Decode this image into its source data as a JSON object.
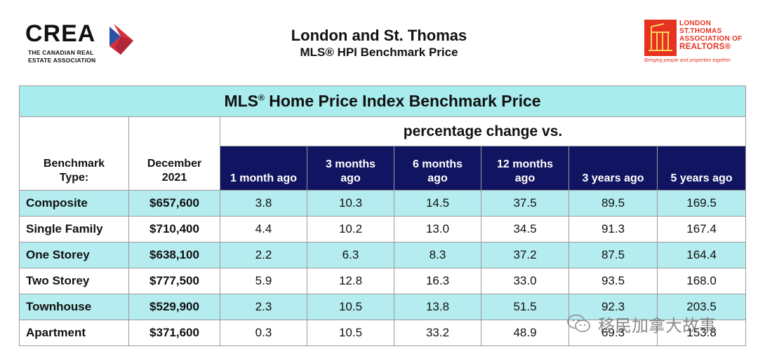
{
  "header": {
    "crea_logo": {
      "word": "CREA",
      "line1": "THE CANADIAN REAL",
      "line2": "ESTATE ASSOCIATION",
      "mark_colors": [
        "#d62f3a",
        "#2b52a3"
      ]
    },
    "title": "London and St. Thomas",
    "subtitle": "MLS® HPI Benchmark Price",
    "lst_logo": {
      "line1": "LONDON",
      "line2": "ST.THOMAS",
      "line3": "ASSOCIATION OF",
      "line4": "REALTORS®",
      "tagline": "Bringing people and properties together",
      "color": "#e63221"
    }
  },
  "table": {
    "caption": "MLS",
    "caption_sup": "®",
    "caption_rest": " Home Price Index Benchmark Price",
    "col_benchmark_line1": "Benchmark",
    "col_benchmark_line2": "Type:",
    "col_date_line1": "December",
    "col_date_line2": "2021",
    "pct_header": "percentage change vs.",
    "periods": [
      {
        "line1": "",
        "line2": "1 month ago"
      },
      {
        "line1": "3 months",
        "line2": "ago"
      },
      {
        "line1": "6 months",
        "line2": "ago"
      },
      {
        "line1": "12 months",
        "line2": "ago"
      },
      {
        "line1": "",
        "line2": "3 years ago"
      },
      {
        "line1": "",
        "line2": "5 years ago"
      }
    ],
    "rows": [
      {
        "type": "Composite",
        "price": "$657,600",
        "changes": [
          "3.8",
          "10.3",
          "14.5",
          "37.5",
          "89.5",
          "169.5"
        ]
      },
      {
        "type": "Single Family",
        "price": "$710,400",
        "changes": [
          "4.4",
          "10.2",
          "13.0",
          "34.5",
          "91.3",
          "167.4"
        ]
      },
      {
        "type": "One Storey",
        "price": "$638,100",
        "changes": [
          "2.2",
          "6.3",
          "8.3",
          "37.2",
          "87.5",
          "164.4"
        ]
      },
      {
        "type": "Two Storey",
        "price": "$777,500",
        "changes": [
          "5.9",
          "12.8",
          "16.3",
          "33.0",
          "93.5",
          "168.0"
        ]
      },
      {
        "type": "Townhouse",
        "price": "$529,900",
        "changes": [
          "2.3",
          "10.5",
          "13.8",
          "51.5",
          "92.3",
          "203.5"
        ]
      },
      {
        "type": "Apartment",
        "price": "$371,600",
        "changes": [
          "0.3",
          "10.5",
          "33.2",
          "48.9",
          "69.3",
          "153.8"
        ]
      }
    ],
    "colors": {
      "caption_bg": "#a9ecee",
      "header_bg": "#111460",
      "highlight_row": "#b4ecef"
    }
  },
  "watermark": {
    "text": "移民加拿大故事",
    "icon": "wechat-icon"
  }
}
